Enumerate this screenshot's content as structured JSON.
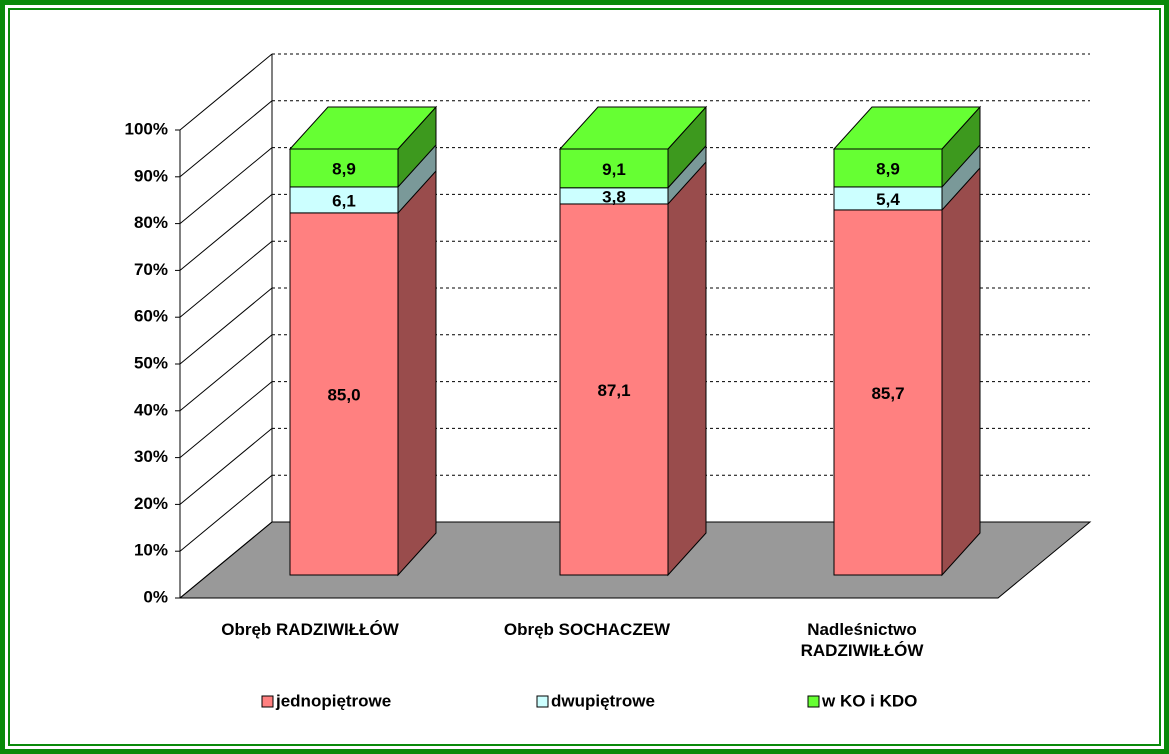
{
  "chart_data": {
    "type": "stacked_bar_3d",
    "categories": [
      "Obręb RADZIWIŁŁÓW",
      "Obręb SOCHACZEW",
      "Nadleśnictwo RADZIWIŁŁÓW"
    ],
    "series": [
      {
        "name": "jednopiętrowe",
        "color": "#ff8080",
        "values": [
          85.0,
          87.1,
          85.7
        ],
        "value_labels": [
          "85,0",
          "87,1",
          "85,7"
        ]
      },
      {
        "name": "dwupiętrowe",
        "color": "#ccffff",
        "values": [
          6.1,
          3.8,
          5.4
        ],
        "value_labels": [
          "6,1",
          "3,8",
          "5,4"
        ]
      },
      {
        "name": "w KO i KDO",
        "color": "#66ff33",
        "values": [
          8.9,
          9.1,
          8.9
        ],
        "value_labels": [
          "8,9",
          "9,1",
          "8,9"
        ]
      }
    ],
    "ylim": [
      0,
      100
    ],
    "yticks": [
      {
        "value": 0,
        "label": "0%"
      },
      {
        "value": 10,
        "label": "10%"
      },
      {
        "value": 20,
        "label": "20%"
      },
      {
        "value": 30,
        "label": "30%"
      },
      {
        "value": 40,
        "label": "40%"
      },
      {
        "value": 50,
        "label": "50%"
      },
      {
        "value": 60,
        "label": "60%"
      },
      {
        "value": 70,
        "label": "70%"
      },
      {
        "value": 80,
        "label": "80%"
      },
      {
        "value": 90,
        "label": "90%"
      },
      {
        "value": 100,
        "label": "100%"
      }
    ],
    "grid": true,
    "legend": "bottom"
  }
}
